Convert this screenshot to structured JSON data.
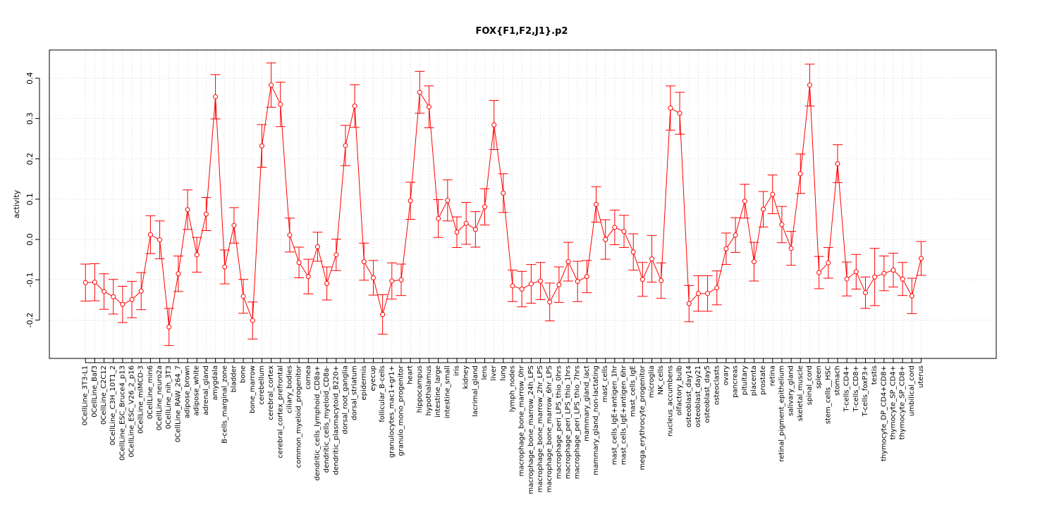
{
  "chart_data": {
    "type": "line",
    "title": "FOX{F1,F2,J1}.p2",
    "xlabel": "",
    "ylabel": "activity",
    "ylim": [
      -0.295,
      0.47
    ],
    "yticks": [
      -0.2,
      -0.1,
      0.0,
      0.1,
      0.2,
      0.3,
      0.4
    ],
    "ytick_labels": [
      "-0.2",
      "-0.1",
      "0.0",
      "0.1",
      "0.2",
      "0.3",
      "0.4"
    ],
    "grid": true,
    "line_color": "#ff0000",
    "grid_color": "#d3d3d3",
    "categories": [
      "0CellLine_3T3-L1",
      "0CellLine_Baf3",
      "0CellLine_C2C12",
      "0CellLine_C3H_10T1_2",
      "0CellLine_ESC_Bruce4_p13",
      "0CellLine_ESC_V26_2_p16",
      "0CellLine_mIMCD-3",
      "0CellLine_min6",
      "0CellLine_neuro2a",
      "0CellLine_nih_3T3",
      "0CellLine_RAW_264_7",
      "adipose_brown",
      "adipose_white",
      "adrenal_gland",
      "amygdala",
      "B-cells_marginal_zone",
      "bladder",
      "bone",
      "bone_marrow",
      "cerebellum",
      "cerebral_cortex",
      "cerebral_cortex_prefrontal",
      "ciliary_bodies",
      "common_myeloid_progenitor",
      "cornea",
      "dendritic_cells_lymphoid_CD8a+",
      "dendritic_cells_myeloid_CD8a-",
      "dendritic_plasmacytoid_B220+",
      "dorsal_root_ganglia",
      "dorsal_striatum",
      "epidermis",
      "eyecup",
      "follicular_B-cells",
      "granulocytes_mac1+gr1+",
      "granulo_mono_progenitor",
      "heart",
      "hippocampus",
      "hypothalamus",
      "intestine_large",
      "intestine_small",
      "iris",
      "kidney",
      "lacrimal_gland",
      "lens",
      "liver",
      "lung",
      "lymph_nodes",
      "macrophage_bone_marrow_0hr",
      "macrophage_bone_marrow_24h_LPS",
      "macrophage_bone_marrow_2hr_LPS",
      "macrophage_bone_marrow_6hr_LPS",
      "macrophage_peri_LPS_thio_0hrs",
      "macrophage_peri_LPS_thio_1hrs",
      "macrophage_peri_LPS_thio_7hrs",
      "mammary_gland_lact",
      "mammary_gland_non-lactating",
      "mast_cells",
      "mast_cells_IgE+antigen_1hr",
      "mast_cells_IgE+antigen_6hr",
      "mast_cells_IgE",
      "mega_erythrocyte_progenitor",
      "microglia",
      "NK_cells",
      "nucleus_accumbens",
      "olfactory_bulb",
      "osteoblast_day14",
      "osteoblast_day21",
      "osteoblast_day5",
      "osteoclasts",
      "ovary",
      "pancreas",
      "pituitary",
      "placenta",
      "prostate",
      "retina",
      "retinal_pigment_epithelium",
      "salivary_gland",
      "skeletal_muscle",
      "spinal_cord",
      "spleen",
      "stem_cells__HSC",
      "stomach",
      "T-cells_CD4+",
      "T-cells_CD8+",
      "T-cells_foxP3+",
      "testis",
      "thymocyte_DP_CD4+CD8+",
      "thymocyte_SP_CD4+",
      "thymocyte_SP_CD8+",
      "umbilical_cord",
      "uterus"
    ],
    "values": [
      -0.107,
      -0.106,
      -0.129,
      -0.142,
      -0.161,
      -0.149,
      -0.128,
      0.012,
      -0.001,
      -0.217,
      -0.085,
      0.074,
      -0.038,
      0.063,
      0.354,
      -0.068,
      0.035,
      -0.141,
      -0.201,
      0.232,
      0.383,
      0.335,
      0.011,
      -0.057,
      -0.092,
      -0.018,
      -0.109,
      -0.038,
      0.233,
      0.331,
      -0.055,
      -0.095,
      -0.186,
      -0.103,
      -0.1,
      0.096,
      0.365,
      0.329,
      0.052,
      0.097,
      0.018,
      0.04,
      0.025,
      0.081,
      0.284,
      0.115,
      -0.115,
      -0.123,
      -0.11,
      -0.103,
      -0.155,
      -0.112,
      -0.055,
      -0.104,
      -0.092,
      0.087,
      0.0,
      0.03,
      0.02,
      -0.031,
      -0.099,
      -0.048,
      -0.102,
      0.326,
      0.313,
      -0.159,
      -0.134,
      -0.134,
      -0.12,
      -0.023,
      0.011,
      0.095,
      -0.055,
      0.075,
      0.112,
      0.037,
      -0.022,
      0.163,
      0.383,
      -0.082,
      -0.058,
      0.188,
      -0.098,
      -0.08,
      -0.132,
      -0.093,
      -0.084,
      -0.076,
      -0.098,
      -0.14,
      -0.047
    ],
    "errors": [
      0.046,
      0.046,
      0.044,
      0.043,
      0.045,
      0.045,
      0.046,
      0.047,
      0.047,
      0.046,
      0.044,
      0.049,
      0.043,
      0.041,
      0.055,
      0.042,
      0.044,
      0.042,
      0.046,
      0.053,
      0.055,
      0.055,
      0.042,
      0.038,
      0.043,
      0.036,
      0.041,
      0.039,
      0.05,
      0.053,
      0.046,
      0.043,
      0.049,
      0.045,
      0.039,
      0.046,
      0.052,
      0.052,
      0.047,
      0.051,
      0.038,
      0.052,
      0.044,
      0.045,
      0.061,
      0.048,
      0.039,
      0.044,
      0.048,
      0.046,
      0.047,
      0.044,
      0.048,
      0.05,
      0.04,
      0.044,
      0.049,
      0.043,
      0.04,
      0.045,
      0.042,
      0.058,
      0.044,
      0.055,
      0.052,
      0.045,
      0.044,
      0.044,
      0.042,
      0.039,
      0.043,
      0.042,
      0.048,
      0.044,
      0.048,
      0.045,
      0.042,
      0.049,
      0.052,
      0.04,
      0.038,
      0.047,
      0.042,
      0.043,
      0.039,
      0.071,
      0.043,
      0.042,
      0.041,
      0.044,
      0.042
    ]
  }
}
